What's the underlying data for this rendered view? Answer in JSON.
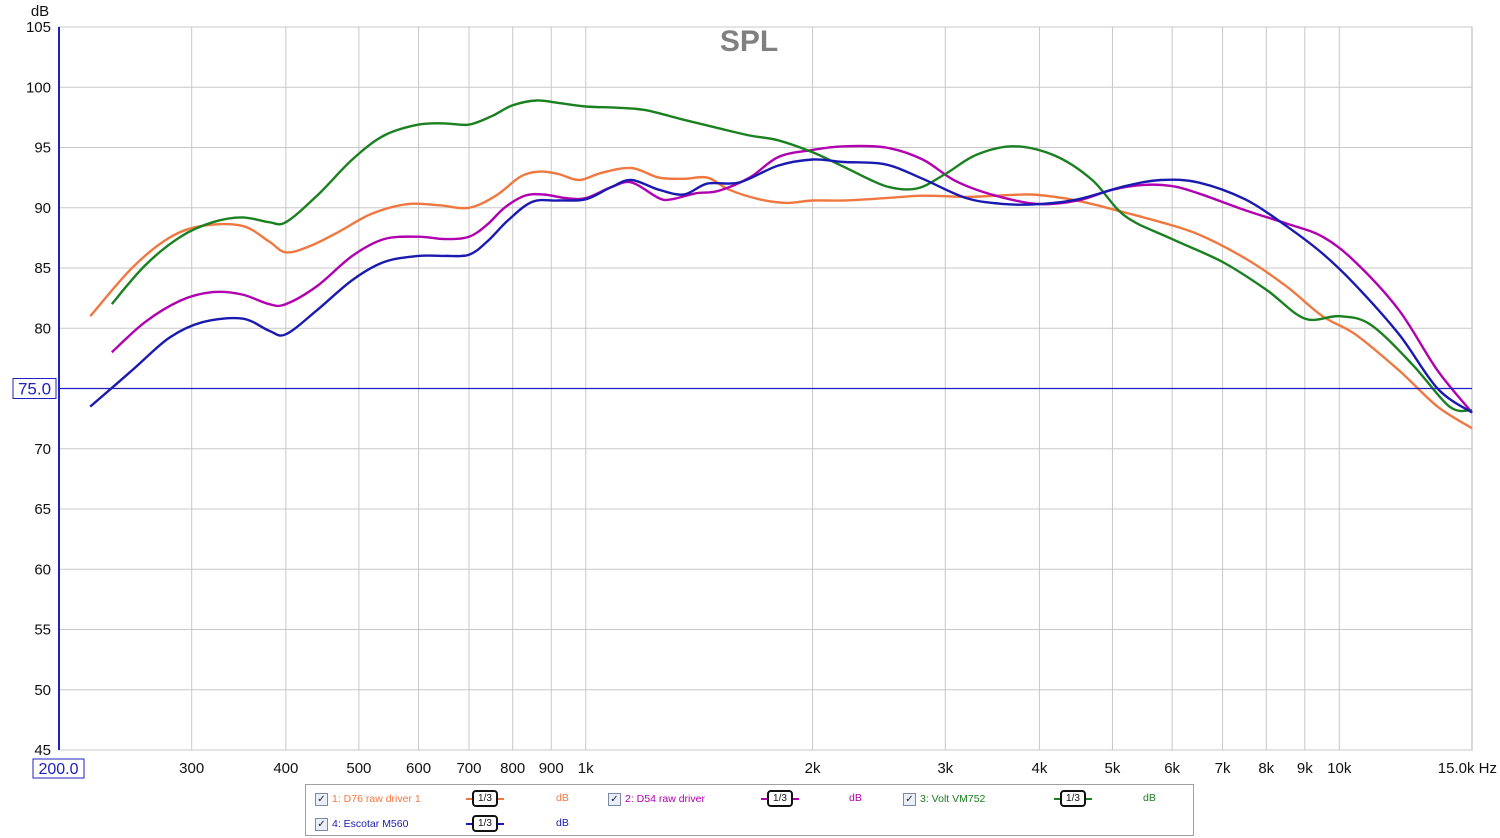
{
  "chart_data": {
    "type": "line",
    "title": "SPL",
    "ylabel": "dB",
    "xunit": "Hz",
    "xscale": "log",
    "xlim": [
      200,
      15000
    ],
    "ylim": [
      45,
      105
    ],
    "yticks": [
      "105",
      "100",
      "95",
      "90",
      "85",
      "80",
      "70",
      "65",
      "60",
      "55",
      "50",
      "45"
    ],
    "ycursor_label": "75.0",
    "ycursor_value": 75,
    "xstart_label": "200.0",
    "xend_label": "15.0k Hz",
    "xticks": [
      {
        "v": 300,
        "label": "300"
      },
      {
        "v": 400,
        "label": "400"
      },
      {
        "v": 500,
        "label": "500"
      },
      {
        "v": 600,
        "label": "600"
      },
      {
        "v": 700,
        "label": "700"
      },
      {
        "v": 800,
        "label": "800"
      },
      {
        "v": 900,
        "label": "900"
      },
      {
        "v": 1000,
        "label": "1k"
      },
      {
        "v": 2000,
        "label": "2k"
      },
      {
        "v": 3000,
        "label": "3k"
      },
      {
        "v": 4000,
        "label": "4k"
      },
      {
        "v": 5000,
        "label": "5k"
      },
      {
        "v": 6000,
        "label": "6k"
      },
      {
        "v": 7000,
        "label": "7k"
      },
      {
        "v": 8000,
        "label": "8k"
      },
      {
        "v": 9000,
        "label": "9k"
      },
      {
        "v": 10000,
        "label": "10k"
      }
    ],
    "grid": true,
    "series": [
      {
        "name": "1: D76 raw driver 1",
        "color": "#f07840",
        "points": [
          [
            220,
            81.0
          ],
          [
            250,
            85.0
          ],
          [
            280,
            87.5
          ],
          [
            310,
            88.5
          ],
          [
            350,
            88.5
          ],
          [
            380,
            87.2
          ],
          [
            400,
            86.3
          ],
          [
            430,
            86.8
          ],
          [
            470,
            88.0
          ],
          [
            520,
            89.5
          ],
          [
            580,
            90.3
          ],
          [
            640,
            90.2
          ],
          [
            700,
            90.0
          ],
          [
            760,
            91.0
          ],
          [
            820,
            92.6
          ],
          [
            870,
            93.0
          ],
          [
            920,
            92.8
          ],
          [
            980,
            92.3
          ],
          [
            1050,
            92.9
          ],
          [
            1150,
            93.3
          ],
          [
            1250,
            92.5
          ],
          [
            1350,
            92.4
          ],
          [
            1450,
            92.5
          ],
          [
            1550,
            91.5
          ],
          [
            1700,
            90.7
          ],
          [
            1850,
            90.4
          ],
          [
            2000,
            90.6
          ],
          [
            2200,
            90.6
          ],
          [
            2500,
            90.8
          ],
          [
            2800,
            91.0
          ],
          [
            3200,
            90.9
          ],
          [
            3500,
            91.0
          ],
          [
            3900,
            91.1
          ],
          [
            4300,
            90.8
          ],
          [
            4700,
            90.3
          ],
          [
            5200,
            89.6
          ],
          [
            5800,
            88.8
          ],
          [
            6500,
            87.8
          ],
          [
            7500,
            85.8
          ],
          [
            8500,
            83.5
          ],
          [
            9500,
            81.0
          ],
          [
            10500,
            79.5
          ],
          [
            12000,
            76.5
          ],
          [
            13500,
            73.5
          ],
          [
            15000,
            71.7
          ]
        ]
      },
      {
        "name": "2: D54 raw driver",
        "color": "#b000b0",
        "points": [
          [
            235,
            78.0
          ],
          [
            260,
            80.5
          ],
          [
            290,
            82.3
          ],
          [
            320,
            83.0
          ],
          [
            350,
            82.8
          ],
          [
            380,
            82.0
          ],
          [
            400,
            82.0
          ],
          [
            440,
            83.5
          ],
          [
            490,
            86.0
          ],
          [
            540,
            87.4
          ],
          [
            600,
            87.6
          ],
          [
            650,
            87.4
          ],
          [
            700,
            87.6
          ],
          [
            740,
            88.6
          ],
          [
            780,
            90.0
          ],
          [
            830,
            91.0
          ],
          [
            880,
            91.1
          ],
          [
            940,
            90.8
          ],
          [
            1000,
            90.8
          ],
          [
            1080,
            91.7
          ],
          [
            1150,
            92.1
          ],
          [
            1250,
            90.8
          ],
          [
            1300,
            90.7
          ],
          [
            1400,
            91.2
          ],
          [
            1500,
            91.4
          ],
          [
            1650,
            92.5
          ],
          [
            1800,
            94.2
          ],
          [
            2000,
            94.8
          ],
          [
            2200,
            95.1
          ],
          [
            2500,
            95.0
          ],
          [
            2800,
            94.0
          ],
          [
            3100,
            92.2
          ],
          [
            3500,
            91.0
          ],
          [
            4000,
            90.3
          ],
          [
            4500,
            90.6
          ],
          [
            5000,
            91.5
          ],
          [
            5500,
            91.9
          ],
          [
            6000,
            91.8
          ],
          [
            6500,
            91.2
          ],
          [
            7500,
            89.8
          ],
          [
            8500,
            88.7
          ],
          [
            9500,
            87.6
          ],
          [
            10500,
            85.5
          ],
          [
            12000,
            81.5
          ],
          [
            13500,
            76.5
          ],
          [
            15000,
            73.0
          ]
        ]
      },
      {
        "name": "3: Volt VM752",
        "color": "#1a8020",
        "points": [
          [
            235,
            82.0
          ],
          [
            260,
            85.2
          ],
          [
            290,
            87.6
          ],
          [
            320,
            88.8
          ],
          [
            350,
            89.2
          ],
          [
            380,
            88.8
          ],
          [
            400,
            88.8
          ],
          [
            440,
            91.0
          ],
          [
            490,
            94.0
          ],
          [
            540,
            96.0
          ],
          [
            600,
            96.9
          ],
          [
            650,
            97.0
          ],
          [
            700,
            96.9
          ],
          [
            750,
            97.6
          ],
          [
            800,
            98.5
          ],
          [
            860,
            98.9
          ],
          [
            920,
            98.7
          ],
          [
            1000,
            98.4
          ],
          [
            1100,
            98.3
          ],
          [
            1200,
            98.1
          ],
          [
            1350,
            97.3
          ],
          [
            1500,
            96.6
          ],
          [
            1650,
            96.0
          ],
          [
            1800,
            95.6
          ],
          [
            2000,
            94.6
          ],
          [
            2200,
            93.4
          ],
          [
            2500,
            91.8
          ],
          [
            2750,
            91.6
          ],
          [
            3000,
            92.8
          ],
          [
            3300,
            94.4
          ],
          [
            3700,
            95.1
          ],
          [
            4200,
            94.3
          ],
          [
            4700,
            92.3
          ],
          [
            5200,
            89.3
          ],
          [
            6000,
            87.4
          ],
          [
            7000,
            85.5
          ],
          [
            8000,
            83.2
          ],
          [
            9000,
            80.8
          ],
          [
            10000,
            81.0
          ],
          [
            11000,
            80.3
          ],
          [
            12500,
            77.0
          ],
          [
            14000,
            73.5
          ],
          [
            15000,
            73.2
          ]
        ]
      },
      {
        "name": "4: Escotar M560",
        "color": "#1a1ab0",
        "points": [
          [
            220,
            73.5
          ],
          [
            250,
            76.5
          ],
          [
            280,
            79.2
          ],
          [
            310,
            80.5
          ],
          [
            350,
            80.8
          ],
          [
            380,
            79.8
          ],
          [
            400,
            79.5
          ],
          [
            440,
            81.5
          ],
          [
            490,
            84.0
          ],
          [
            540,
            85.5
          ],
          [
            600,
            86.0
          ],
          [
            650,
            86.0
          ],
          [
            700,
            86.1
          ],
          [
            740,
            87.2
          ],
          [
            790,
            89.0
          ],
          [
            850,
            90.5
          ],
          [
            920,
            90.6
          ],
          [
            1000,
            90.7
          ],
          [
            1080,
            91.7
          ],
          [
            1150,
            92.3
          ],
          [
            1250,
            91.5
          ],
          [
            1350,
            91.1
          ],
          [
            1450,
            92.0
          ],
          [
            1600,
            92.1
          ],
          [
            1800,
            93.5
          ],
          [
            2000,
            94.0
          ],
          [
            2200,
            93.8
          ],
          [
            2500,
            93.6
          ],
          [
            2800,
            92.4
          ],
          [
            3200,
            90.8
          ],
          [
            3600,
            90.3
          ],
          [
            4000,
            90.3
          ],
          [
            4500,
            90.7
          ],
          [
            5200,
            91.8
          ],
          [
            5800,
            92.3
          ],
          [
            6500,
            92.1
          ],
          [
            7500,
            90.7
          ],
          [
            8500,
            88.5
          ],
          [
            9500,
            86.2
          ],
          [
            10500,
            83.6
          ],
          [
            12000,
            79.5
          ],
          [
            13500,
            75.0
          ],
          [
            15000,
            73.0
          ]
        ]
      }
    ]
  },
  "legend": {
    "unit": "dB",
    "smoothing": "1/3",
    "check": "✓",
    "items": [
      {
        "label": "1: D76 raw driver 1",
        "color": "#f07840"
      },
      {
        "label": "2: D54 raw driver",
        "color": "#b000b0"
      },
      {
        "label": "3: Volt VM752",
        "color": "#1a8020"
      },
      {
        "label": "4: Escotar M560",
        "color": "#1a1ab0"
      }
    ]
  }
}
